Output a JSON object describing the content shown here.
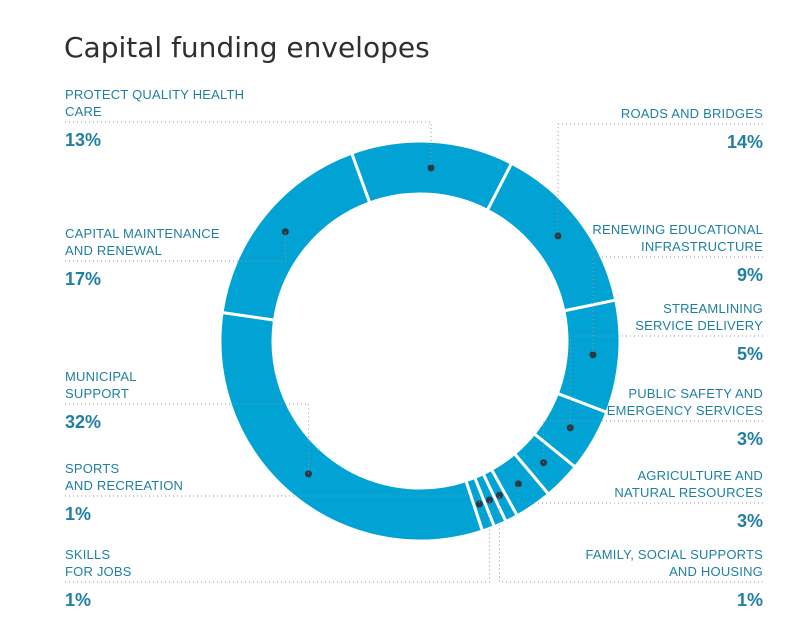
{
  "chart_data": {
    "type": "pie",
    "title": "Capital funding envelopes",
    "categories": [
      "PROTECT QUALITY HEALTH CARE",
      "ROADS AND BRIDGES",
      "RENEWING EDUCATIONAL INFRASTRUCTURE",
      "STREAMLINING SERVICE DELIVERY",
      "PUBLIC SAFETY AND EMERGENCY SERVICES",
      "AGRICULTURE AND NATURAL RESOURCES",
      "FAMILY, SOCIAL SUPPORTS AND HOUSING",
      "SKILLS FOR JOBS",
      "SPORTS AND RECREATION",
      "MUNICIPAL SUPPORT",
      "CAPITAL MAINTENANCE AND RENEWAL"
    ],
    "values": [
      13,
      14,
      9,
      5,
      3,
      3,
      1,
      1,
      1,
      32,
      17
    ],
    "value_labels": [
      "13%",
      "14%",
      "9%",
      "5%",
      "3%",
      "3%",
      "1%",
      "1%",
      "1%",
      "32%",
      "17%"
    ],
    "label_lines": [
      [
        "PROTECT QUALITY HEALTH",
        "CARE"
      ],
      [
        "ROADS AND BRIDGES"
      ],
      [
        "RENEWING EDUCATIONAL",
        "INFRASTRUCTURE"
      ],
      [
        "STREAMLINING",
        "SERVICE DELIVERY"
      ],
      [
        "PUBLIC SAFETY AND",
        "EMERGENCY SERVICES"
      ],
      [
        "AGRICULTURE AND",
        "NATURAL RESOURCES"
      ],
      [
        "FAMILY, SOCIAL SUPPORTS",
        "AND HOUSING"
      ],
      [
        "SKILLS",
        "FOR JOBS"
      ],
      [
        "SPORTS",
        "AND RECREATION"
      ],
      [
        "MUNICIPAL",
        "SUPPORT"
      ],
      [
        "CAPITAL MAINTENANCE",
        "AND RENEWAL"
      ]
    ],
    "style": "donut",
    "color": "#00a3d4",
    "label_color": "#1f7fa3"
  }
}
